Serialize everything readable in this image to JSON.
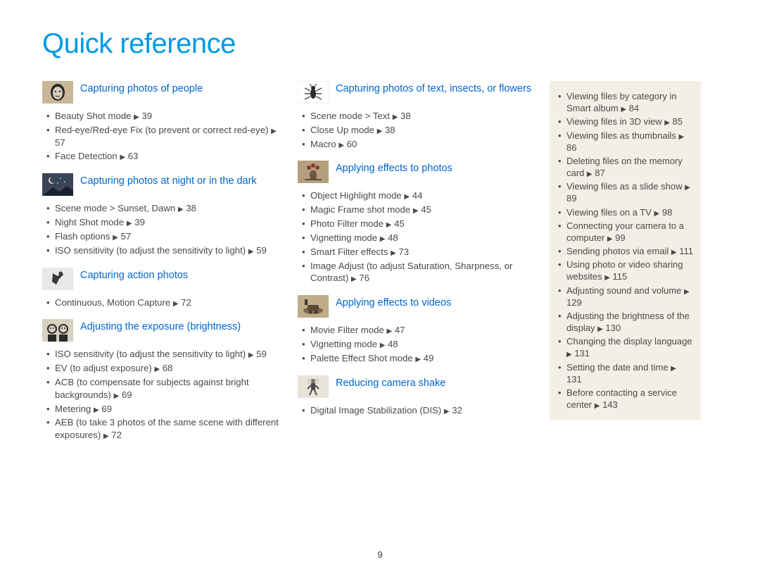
{
  "title": {
    "text": "Quick reference",
    "color": "#0099e5"
  },
  "page_number": "9",
  "arrow_glyph": "▶",
  "heading_color": "#0066cc",
  "columns": [
    {
      "sections": [
        {
          "icon": "face",
          "title": "Capturing photos of people",
          "items": [
            {
              "text": "Beauty Shot mode",
              "page": "39"
            },
            {
              "text": "Red-eye/Red-eye Fix (to prevent or correct red-eye)",
              "page": "57"
            },
            {
              "text": "Face Detection",
              "page": "63"
            }
          ]
        },
        {
          "icon": "night",
          "title": "Capturing photos at night or in the dark",
          "items": [
            {
              "text": "Scene mode > Sunset, Dawn",
              "page": "38"
            },
            {
              "text": "Night Shot mode",
              "page": "39"
            },
            {
              "text": "Flash options",
              "page": "57"
            },
            {
              "text": "ISO sensitivity (to adjust the sensitivity to light)",
              "page": "59"
            }
          ]
        },
        {
          "icon": "action",
          "title": "Capturing action photos",
          "items": [
            {
              "text": "Continuous, Motion Capture",
              "page": "72"
            }
          ]
        },
        {
          "icon": "exposure",
          "title": "Adjusting the exposure (brightness)",
          "items": [
            {
              "text": "ISO sensitivity (to adjust the sensitivity to light)",
              "page": "59"
            },
            {
              "text": "EV (to adjust exposure)",
              "page": "68"
            },
            {
              "text": "ACB (to compensate for subjects against bright backgrounds)",
              "page": "69"
            },
            {
              "text": "Metering",
              "page": "69"
            },
            {
              "text": "AEB (to take 3 photos of the same scene with different exposures)",
              "page": "72"
            }
          ]
        }
      ]
    },
    {
      "sections": [
        {
          "icon": "insect",
          "title": "Capturing  photos of text, insects, or flowers",
          "items": [
            {
              "text": "Scene mode > Text",
              "page": "38"
            },
            {
              "text": "Close Up mode",
              "page": "38"
            },
            {
              "text": "Macro",
              "page": "60"
            }
          ]
        },
        {
          "icon": "vase",
          "title": "Applying effects to photos",
          "items": [
            {
              "text": "Object Highlight mode",
              "page": "44"
            },
            {
              "text": "Magic Frame shot mode",
              "page": "45"
            },
            {
              "text": "Photo Filter mode",
              "page": "45"
            },
            {
              "text": "Vignetting mode",
              "page": "48"
            },
            {
              "text": "Smart Filter effects",
              "page": "73"
            },
            {
              "text": "Image Adjust (to adjust Saturation, Sharpness, or Contrast)",
              "page": "76"
            }
          ]
        },
        {
          "icon": "video",
          "title": "Applying effects to videos",
          "items": [
            {
              "text": "Movie Filter mode",
              "page": "47"
            },
            {
              "text": "Vignetting mode",
              "page": "48"
            },
            {
              "text": "Palette Effect Shot mode",
              "page": "49"
            }
          ]
        },
        {
          "icon": "shake",
          "title": "Reducing camera shake",
          "items": [
            {
              "text": "Digital Image Stabilization (DIS)",
              "page": "32"
            }
          ]
        }
      ]
    }
  ],
  "sidebar": {
    "items": [
      {
        "text": "Viewing files by category in Smart album",
        "page": "84"
      },
      {
        "text": "Viewing files in 3D view",
        "page": "85"
      },
      {
        "text": "Viewing files as thumbnails",
        "page": "86"
      },
      {
        "text": "Deleting files on the memory card",
        "page": "87"
      },
      {
        "text": "Viewing files as a slide show",
        "page": "89"
      },
      {
        "text": "Viewing files on a TV",
        "page": "98"
      },
      {
        "text": "Connecting your camera to a computer",
        "page": "99"
      },
      {
        "text": "Sending photos via email",
        "page": "111"
      },
      {
        "text": "Using photo or video sharing websites",
        "page": "115"
      },
      {
        "text": "Adjusting sound and volume",
        "page": "129"
      },
      {
        "text": "Adjusting the brightness of the display",
        "page": "130"
      },
      {
        "text": "Changing the display language",
        "page": "131"
      },
      {
        "text": "Setting the date and time",
        "page": "131"
      },
      {
        "text": "Before contacting a service center",
        "page": "143"
      }
    ]
  },
  "icons": {
    "face": {
      "bg": "#c9b896"
    },
    "night": {
      "bg": "#3a4558"
    },
    "action": {
      "bg": "#e8e8e8"
    },
    "exposure": {
      "bg": "#d8d0c0"
    },
    "insect": {
      "bg": "#ffffff"
    },
    "vase": {
      "bg": "#b5a07d"
    },
    "video": {
      "bg": "#c0ac88"
    },
    "shake": {
      "bg": "#e8e4da"
    }
  }
}
